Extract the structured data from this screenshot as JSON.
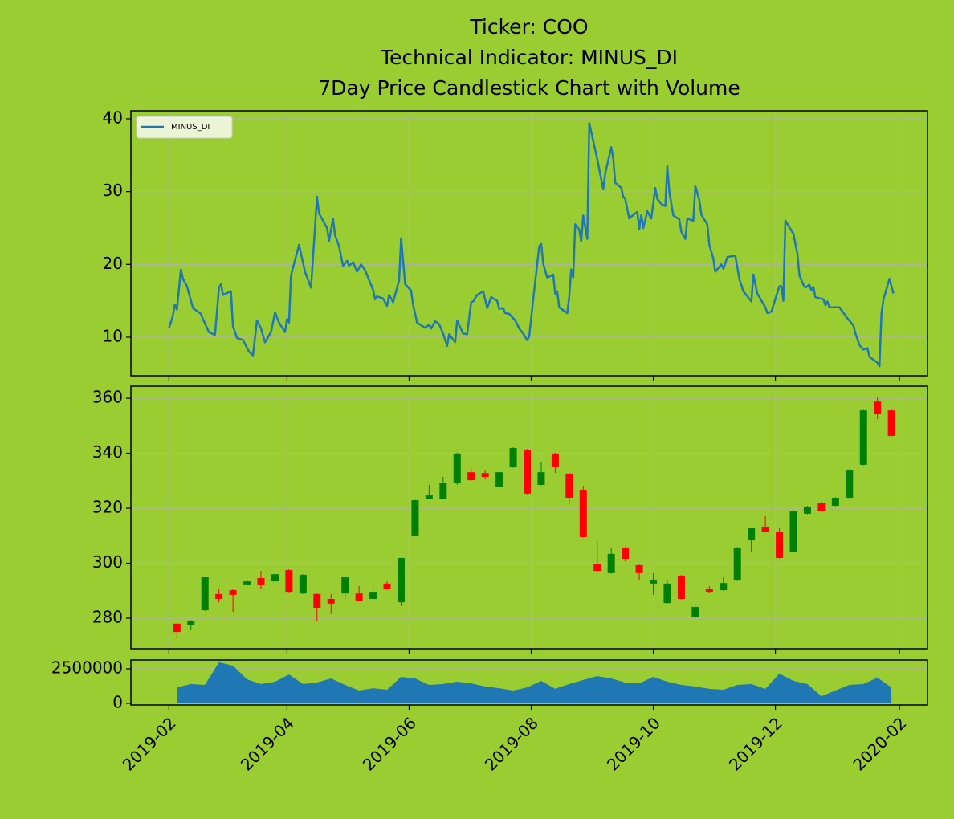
{
  "chart_data": [
    {
      "type": "line",
      "title": [
        "Ticker: COO",
        "Technical Indicator: MINUS_DI",
        "7Day Price Candlestick Chart with Volume"
      ],
      "x": [
        "2019-02-01",
        "2019-02-03",
        "2019-02-04",
        "2019-02-05",
        "2019-02-07",
        "2019-02-08",
        "2019-02-10",
        "2019-02-12",
        "2019-02-13",
        "2019-02-17",
        "2019-02-18",
        "2019-02-21",
        "2019-02-24",
        "2019-02-26",
        "2019-02-27",
        "2019-02-28",
        "2019-03-04",
        "2019-03-05",
        "2019-03-07",
        "2019-03-10",
        "2019-03-13",
        "2019-03-15",
        "2019-03-17",
        "2019-03-19",
        "2019-03-21",
        "2019-03-24",
        "2019-03-26",
        "2019-03-28",
        "2019-03-31",
        "2019-04-01",
        "2019-04-02",
        "2019-04-03",
        "2019-04-07",
        "2019-04-10",
        "2019-04-13",
        "2019-04-16",
        "2019-04-17",
        "2019-04-21",
        "2019-04-22",
        "2019-04-24",
        "2019-04-25",
        "2019-04-27",
        "2019-04-29",
        "2019-05-01",
        "2019-05-02",
        "2019-05-04",
        "2019-05-06",
        "2019-05-08",
        "2019-05-10",
        "2019-05-14",
        "2019-05-15",
        "2019-05-16",
        "2019-05-19",
        "2019-05-21",
        "2019-05-22",
        "2019-05-24",
        "2019-05-27",
        "2019-05-28",
        "2019-05-30",
        "2019-06-02",
        "2019-06-03",
        "2019-06-05",
        "2019-06-09",
        "2019-06-11",
        "2019-06-12",
        "2019-06-14",
        "2019-06-16",
        "2019-06-18",
        "2019-06-20",
        "2019-06-21",
        "2019-06-24",
        "2019-06-25",
        "2019-06-28",
        "2019-06-30",
        "2019-07-02",
        "2019-07-03",
        "2019-07-05",
        "2019-07-08",
        "2019-07-10",
        "2019-07-12",
        "2019-07-15",
        "2019-07-16",
        "2019-07-18",
        "2019-07-19",
        "2019-07-21",
        "2019-07-24",
        "2019-07-26",
        "2019-07-28",
        "2019-07-30",
        "2019-07-31",
        "2019-08-02",
        "2019-08-05",
        "2019-08-06",
        "2019-08-07",
        "2019-08-09",
        "2019-08-12",
        "2019-08-13",
        "2019-08-14",
        "2019-08-15",
        "2019-08-19",
        "2019-08-20",
        "2019-08-21",
        "2019-08-22",
        "2019-08-23",
        "2019-08-25",
        "2019-08-26",
        "2019-08-27",
        "2019-08-29",
        "2019-08-30",
        "2019-09-03",
        "2019-09-06",
        "2019-09-07",
        "2019-09-10",
        "2019-09-11",
        "2019-09-12",
        "2019-09-15",
        "2019-09-16",
        "2019-09-17",
        "2019-09-19",
        "2019-09-21",
        "2019-09-23",
        "2019-09-24",
        "2019-09-25",
        "2019-09-26",
        "2019-09-28",
        "2019-09-30",
        "2019-10-02",
        "2019-10-03",
        "2019-10-05",
        "2019-10-07",
        "2019-10-08",
        "2019-10-09",
        "2019-10-11",
        "2019-10-14",
        "2019-10-15",
        "2019-10-17",
        "2019-10-18",
        "2019-10-21",
        "2019-10-22",
        "2019-10-24",
        "2019-10-25",
        "2019-10-28",
        "2019-10-29",
        "2019-10-31",
        "2019-11-01",
        "2019-11-04",
        "2019-11-05",
        "2019-11-07",
        "2019-11-11",
        "2019-11-13",
        "2019-11-15",
        "2019-11-19",
        "2019-11-20",
        "2019-11-22",
        "2019-11-26",
        "2019-11-27",
        "2019-11-29",
        "2019-12-03",
        "2019-12-04",
        "2019-12-05",
        "2019-12-06",
        "2019-12-10",
        "2019-12-12",
        "2019-12-13",
        "2019-12-15",
        "2019-12-16",
        "2019-12-18",
        "2019-12-19",
        "2019-12-20",
        "2019-12-21",
        "2019-12-25",
        "2019-12-26",
        "2019-12-27",
        "2019-12-28",
        "2020-01-02",
        "2020-01-06",
        "2020-01-09",
        "2020-01-10",
        "2020-01-12",
        "2020-01-14",
        "2020-01-16",
        "2020-01-17",
        "2020-01-21",
        "2020-01-22",
        "2020-01-23",
        "2020-01-24",
        "2020-01-27",
        "2020-01-29"
      ],
      "series": [
        {
          "name": "MINUS_DI",
          "color": "#1f77b4",
          "values": [
            11.2,
            13,
            14.5,
            13.8,
            19.3,
            18,
            17,
            15,
            14,
            13.2,
            12.5,
            10.7,
            10.3,
            16.8,
            17.3,
            15.8,
            16.3,
            11.5,
            9.9,
            9.6,
            8,
            7.5,
            12.3,
            11.2,
            9.3,
            10.7,
            13.4,
            12,
            10.7,
            12.5,
            12,
            18.5,
            22.7,
            19,
            16.8,
            29.3,
            27,
            25,
            23.2,
            26.3,
            24,
            22.5,
            19.8,
            20.5,
            19.8,
            20.3,
            19,
            20,
            19.2,
            16.5,
            15.2,
            15.6,
            15.3,
            14.3,
            15.8,
            14.8,
            17.8,
            23.6,
            17.3,
            16.4,
            14.5,
            12,
            11.3,
            11.7,
            11.2,
            12.2,
            11.8,
            10.5,
            8.8,
            10.4,
            9.3,
            12.3,
            10.5,
            10.4,
            14.8,
            14.9,
            15.8,
            16.3,
            14,
            15.5,
            15,
            13.9,
            14,
            13.3,
            13.2,
            12.3,
            11.2,
            10.5,
            9.6,
            10.1,
            15.2,
            22.5,
            22.8,
            20.1,
            18.2,
            18.6,
            16,
            16.3,
            14.1,
            13.3,
            15.5,
            19.3,
            18.2,
            25.5,
            24.8,
            23.2,
            26.7,
            23.5,
            39.4,
            34.5,
            30.3,
            32.5,
            36.1,
            34.5,
            31.2,
            30.5,
            29.3,
            29,
            26.3,
            26.8,
            27.2,
            24.9,
            26.8,
            25,
            27.3,
            26.3,
            30.5,
            29,
            28.3,
            28,
            33.5,
            30,
            26.7,
            26.2,
            24.5,
            23.5,
            26.3,
            26,
            30.8,
            28.8,
            26.8,
            25.5,
            22.7,
            20.8,
            19,
            20,
            19.4,
            21,
            21.2,
            18,
            16.3,
            14.9,
            18.6,
            16,
            14.1,
            13.3,
            13.5,
            17,
            17,
            15,
            26,
            24.2,
            21.5,
            18.5,
            17.2,
            16.8,
            17.2,
            16.4,
            16.9,
            15.5,
            15.2,
            14.4,
            14.9,
            14.1,
            14.1,
            12.6,
            11.6,
            10.5,
            8.9,
            8.3,
            8.5,
            7.3,
            6.5,
            6,
            13.3,
            15.2,
            18,
            16
          ]
        }
      ],
      "xlim": [
        "2019-01-13",
        "2020-02-15"
      ],
      "xticks": [
        "2019-02",
        "2019-04",
        "2019-06",
        "2019-08",
        "2019-10",
        "2019-12",
        "2020-02"
      ],
      "ylim": [
        4.7,
        41.1
      ],
      "yticks": [
        10,
        20,
        30,
        40
      ],
      "grid": true,
      "legend": "upper left"
    },
    {
      "type": "candlestick",
      "x": [
        "2019-02-05",
        "2019-02-12",
        "2019-02-19",
        "2019-02-26",
        "2019-03-05",
        "2019-03-12",
        "2019-03-19",
        "2019-03-26",
        "2019-04-02",
        "2019-04-09",
        "2019-04-16",
        "2019-04-23",
        "2019-04-30",
        "2019-05-07",
        "2019-05-14",
        "2019-05-21",
        "2019-05-28",
        "2019-06-04",
        "2019-06-11",
        "2019-06-18",
        "2019-06-25",
        "2019-07-02",
        "2019-07-09",
        "2019-07-16",
        "2019-07-23",
        "2019-07-30",
        "2019-08-06",
        "2019-08-13",
        "2019-08-20",
        "2019-08-27",
        "2019-09-03",
        "2019-09-10",
        "2019-09-17",
        "2019-09-24",
        "2019-10-01",
        "2019-10-08",
        "2019-10-15",
        "2019-10-22",
        "2019-10-29",
        "2019-11-05",
        "2019-11-12",
        "2019-11-19",
        "2019-11-26",
        "2019-12-03",
        "2019-12-10",
        "2019-12-17",
        "2019-12-24",
        "2019-12-31",
        "2020-01-07",
        "2020-01-14",
        "2020-01-21",
        "2020-01-28"
      ],
      "open": [
        278,
        277.4,
        282.9,
        288.8,
        290.2,
        292.3,
        294.6,
        293.4,
        297.5,
        289,
        288.8,
        287,
        289,
        289,
        287,
        292.6,
        285.8,
        310.1,
        323.5,
        323.5,
        329.3,
        333.1,
        332.8,
        327.9,
        334.9,
        341.3,
        328.5,
        339.9,
        332.6,
        326.7,
        299.6,
        296.4,
        305.7,
        299.3,
        292.6,
        285.5,
        295.5,
        280.3,
        290.8,
        290.2,
        294,
        308.3,
        313.3,
        311.5,
        304.2,
        318,
        322,
        320.9,
        323.8,
        335.8,
        358.8,
        355.6
      ],
      "high": [
        278,
        279.3,
        295,
        290.8,
        290.5,
        295.2,
        297.2,
        296.3,
        297.8,
        296,
        289,
        288.8,
        295,
        291.7,
        292.6,
        293.4,
        302,
        323.1,
        328.5,
        331.4,
        340.2,
        335.2,
        334,
        333.3,
        342.2,
        341.6,
        336.9,
        340.2,
        332.8,
        328.2,
        308,
        305.4,
        305.9,
        299.5,
        296.4,
        294,
        295.7,
        284.3,
        291.7,
        294.9,
        305.9,
        313,
        317.1,
        312.7,
        319.3,
        320.9,
        322.3,
        324,
        334.2,
        355.8,
        360.3,
        355.8
      ],
      "low": [
        272.7,
        275.9,
        282.7,
        285.8,
        282.3,
        291.7,
        290.8,
        293.1,
        289.4,
        288.8,
        278.8,
        281.5,
        287,
        286.2,
        286.8,
        290.3,
        284.4,
        310,
        323.2,
        323.3,
        328.5,
        330,
        330.5,
        327.7,
        334.7,
        325.1,
        328.3,
        332.8,
        321.5,
        309.3,
        297,
        296.2,
        300.7,
        294,
        288.5,
        285.3,
        286.8,
        280.1,
        289.3,
        290,
        293.8,
        304.2,
        311.3,
        301.7,
        304,
        317.8,
        318.8,
        320.7,
        323.6,
        335.6,
        352.4,
        346.1
      ],
      "close": [
        275,
        279.1,
        294.9,
        287,
        288.5,
        293.4,
        292,
        296,
        289.6,
        295.8,
        283.8,
        285.3,
        294.9,
        286.4,
        289.6,
        290.5,
        301.9,
        322.9,
        324.7,
        329.3,
        339.9,
        330.2,
        331.4,
        333.1,
        341.9,
        325.3,
        333.1,
        335.2,
        323.8,
        309.5,
        297.2,
        303.4,
        301.6,
        296.4,
        294,
        292.6,
        287,
        284.1,
        289.6,
        292.8,
        305.7,
        312.7,
        311.5,
        301.9,
        319.1,
        320.6,
        319.1,
        323.8,
        334,
        355.6,
        354.2,
        346.3
      ],
      "up_color": "green",
      "down_color": "red",
      "xlim": [
        "2019-01-13",
        "2020-02-15"
      ],
      "xticks": [
        "2019-02",
        "2019-04",
        "2019-06",
        "2019-08",
        "2019-10",
        "2019-12",
        "2020-02"
      ],
      "ylim": [
        268.9,
        364.4
      ],
      "yticks": [
        280,
        300,
        320,
        340,
        360
      ],
      "grid": true
    },
    {
      "type": "area",
      "x": [
        "2019-02-05",
        "2019-02-12",
        "2019-02-19",
        "2019-02-26",
        "2019-03-05",
        "2019-03-12",
        "2019-03-19",
        "2019-03-26",
        "2019-04-02",
        "2019-04-09",
        "2019-04-16",
        "2019-04-23",
        "2019-04-30",
        "2019-05-07",
        "2019-05-14",
        "2019-05-21",
        "2019-05-28",
        "2019-06-04",
        "2019-06-11",
        "2019-06-18",
        "2019-06-25",
        "2019-07-02",
        "2019-07-09",
        "2019-07-16",
        "2019-07-23",
        "2019-07-30",
        "2019-08-06",
        "2019-08-13",
        "2019-08-20",
        "2019-08-27",
        "2019-09-03",
        "2019-09-10",
        "2019-09-17",
        "2019-09-24",
        "2019-10-01",
        "2019-10-08",
        "2019-10-15",
        "2019-10-22",
        "2019-10-29",
        "2019-11-05",
        "2019-11-12",
        "2019-11-19",
        "2019-11-26",
        "2019-12-03",
        "2019-12-10",
        "2019-12-17",
        "2019-12-24",
        "2019-12-31",
        "2020-01-07",
        "2020-01-14",
        "2020-01-21",
        "2020-01-28"
      ],
      "values": [
        1160000,
        1400000,
        1340000,
        2970000,
        2730000,
        1740000,
        1400000,
        1570000,
        2090000,
        1400000,
        1510000,
        1800000,
        1340000,
        930000,
        1100000,
        990000,
        1920000,
        1800000,
        1340000,
        1400000,
        1570000,
        1450000,
        1220000,
        1100000,
        930000,
        1160000,
        1630000,
        1050000,
        1400000,
        1690000,
        1980000,
        1800000,
        1510000,
        1450000,
        1920000,
        1570000,
        1340000,
        1220000,
        1050000,
        990000,
        1340000,
        1400000,
        1050000,
        2150000,
        1630000,
        1400000,
        520000,
        930000,
        1340000,
        1400000,
        1860000,
        1160000
      ],
      "color": "#1f77b4",
      "xlim": [
        "2019-01-13",
        "2020-02-15"
      ],
      "xticks": [
        "2019-02",
        "2019-04",
        "2019-06",
        "2019-08",
        "2019-10",
        "2019-12",
        "2020-02"
      ],
      "ylim": [
        -116000,
        3140000
      ],
      "yticks": [
        0,
        2500000
      ],
      "grid": true
    }
  ]
}
